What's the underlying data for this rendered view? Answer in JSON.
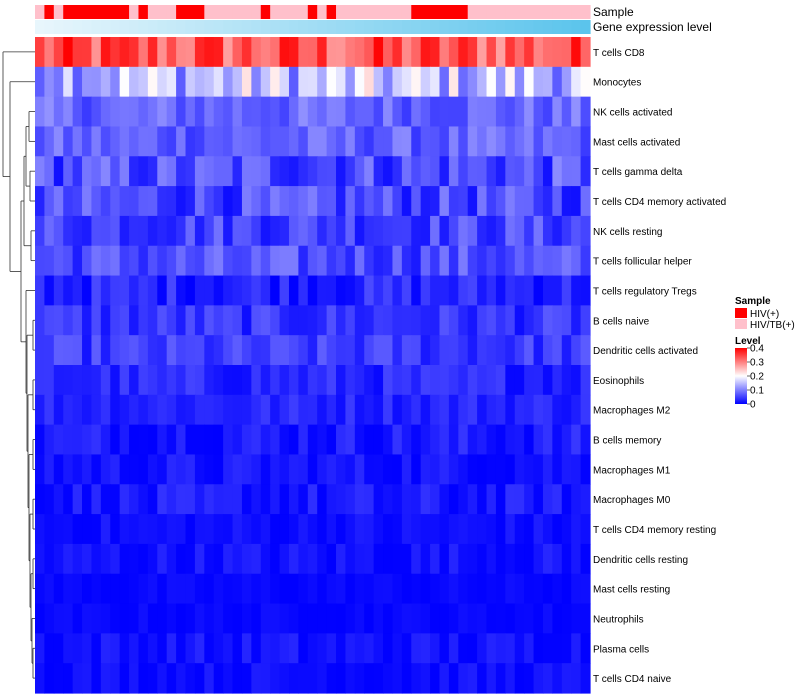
{
  "chart_data": {
    "type": "heatmap",
    "annotations": {
      "sample_label": "Sample",
      "gene_label": "Gene expression level",
      "sample_codes": [
        1,
        0,
        1,
        0,
        0,
        0,
        0,
        0,
        0,
        0,
        1,
        0,
        1,
        1,
        1,
        0,
        0,
        0,
        1,
        1,
        1,
        1,
        1,
        1,
        0,
        1,
        1,
        1,
        1,
        0,
        1,
        0,
        1,
        1,
        1,
        1,
        1,
        1,
        1,
        1,
        0,
        0,
        0,
        0,
        0,
        0,
        1,
        1,
        1,
        1,
        1,
        1,
        1,
        1,
        1,
        1,
        1,
        1,
        1
      ]
    },
    "rows": [
      "T cells CD8",
      "Monocytes",
      "NK cells activated",
      "Mast cells activated",
      "T cells gamma delta",
      "T cells CD4 memory activated",
      "NK cells resting",
      "T cells follicular helper",
      "T cells regulatory  Tregs",
      "B cells naive",
      "Dendritic cells activated",
      "Eosinophils",
      "Macrophages M2",
      "B cells memory",
      "Macrophages M1",
      "Macrophages M0",
      "T cells CD4 memory resting",
      "Dendritic cells resting",
      "Mast cells resting",
      "Neutrophils",
      "Plasma cells",
      "T cells CD4 naive"
    ],
    "n_samples": 59,
    "row_levels": [
      0.33,
      0.15,
      0.08,
      0.075,
      0.06,
      0.055,
      0.055,
      0.06,
      0.03,
      0.04,
      0.045,
      0.03,
      0.03,
      0.02,
      0.015,
      0.015,
      0.01,
      0.012,
      0.005,
      0.005,
      0.012,
      0.01
    ],
    "row_spread": [
      0.07,
      0.08,
      0.035,
      0.035,
      0.05,
      0.045,
      0.04,
      0.04,
      0.03,
      0.03,
      0.03,
      0.025,
      0.02,
      0.025,
      0.02,
      0.025,
      0.015,
      0.02,
      0.008,
      0.008,
      0.02,
      0.015
    ],
    "legend": {
      "sample_title": "Sample",
      "sample_entries": [
        {
          "label": "HIV(+)",
          "color": "#FF0000"
        },
        {
          "label": "HIV/TB(+)",
          "color": "#FFC0CB"
        }
      ],
      "level_title": "Level",
      "level_ticks": [
        {
          "value": 0.4,
          "label": "0.4"
        },
        {
          "value": 0.3,
          "label": "0.3"
        },
        {
          "value": 0.2,
          "label": "0.2"
        },
        {
          "value": 0.1,
          "label": "0.1"
        },
        {
          "value": 0,
          "label": "0"
        }
      ],
      "range": [
        0,
        0.4
      ]
    },
    "colors": {
      "low": "#0000FF",
      "mid": "#FFFFFF",
      "high": "#FF0000",
      "hiv": "#FF0000",
      "hivtb": "#FFC0CB",
      "gene_start": "#E8F6FC",
      "gene_end": "#5BC4EC"
    }
  }
}
